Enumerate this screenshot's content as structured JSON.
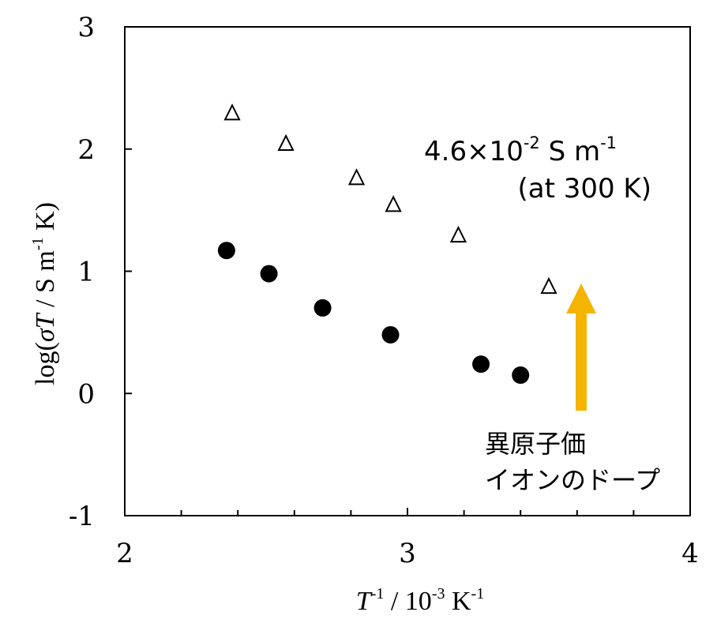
{
  "chart_data": {
    "type": "scatter",
    "xlim": [
      2,
      4
    ],
    "ylim": [
      -1,
      3
    ],
    "xticks": [
      2,
      3,
      4
    ],
    "xticks_minor": [
      2.2,
      2.4,
      2.6,
      2.8,
      3.2,
      3.4,
      3.6,
      3.8
    ],
    "yticks": [
      -1,
      0,
      1,
      2,
      3
    ],
    "xtick_labels": [
      "2",
      "3",
      "4"
    ],
    "ytick_labels": [
      "-1",
      "0",
      "1",
      "2",
      "3"
    ],
    "xlabel": {
      "var": "T",
      "sup1": "-1",
      "mid": " / 10",
      "sup2": "-3",
      "unit": " K",
      "sup3": "-1"
    },
    "ylabel": {
      "pre": "log(",
      "var": "σT",
      "mid": " / S m",
      "sup": "-1",
      "post": " K)"
    },
    "grid": false,
    "series": [
      {
        "marker": "filled-circle",
        "color": "#000000",
        "x": [
          2.36,
          2.51,
          2.7,
          2.94,
          3.26,
          3.4
        ],
        "y": [
          1.17,
          0.98,
          0.7,
          0.48,
          0.24,
          0.15
        ]
      },
      {
        "marker": "open-triangle",
        "color": "#000000",
        "x": [
          2.38,
          2.57,
          2.82,
          2.95,
          3.18,
          3.5
        ],
        "y": [
          2.3,
          2.05,
          1.77,
          1.55,
          1.3,
          0.88
        ]
      }
    ],
    "annotations": {
      "conductivity": {
        "base": "4.6×10",
        "sup": "-2",
        "mid": " S m",
        "sup2": "-1"
      },
      "temperature": "(at 300 K)",
      "doping_line1": "異原子価",
      "doping_line2": "イオンのドープ",
      "arrow_color": "#F5B400"
    }
  }
}
